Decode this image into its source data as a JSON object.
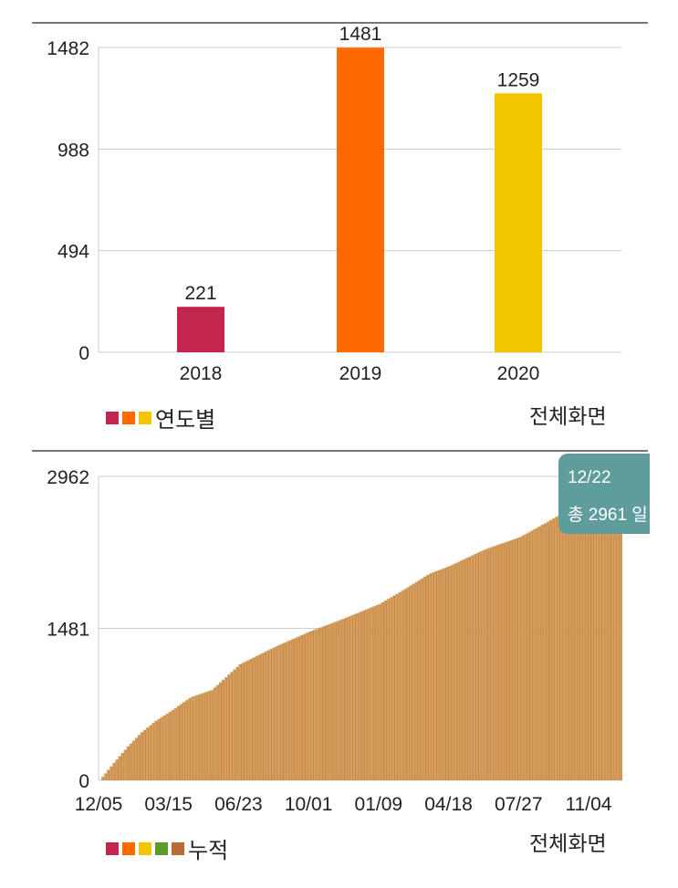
{
  "charts": [
    {
      "legend_label": "연도별",
      "fullscreen_label": "전체화면",
      "legend_colors": [
        "#c2264f",
        "#ff6a00",
        "#f2c500"
      ]
    },
    {
      "legend_label": "누적",
      "fullscreen_label": "전체화면",
      "legend_colors": [
        "#c2264f",
        "#ff6a00",
        "#f2c500",
        "#5c9a2a",
        "#b86a37"
      ],
      "tooltip": {
        "date": "12/22",
        "value": "총 2961 일"
      }
    }
  ],
  "chart_data": [
    {
      "type": "bar",
      "title": "",
      "xlabel": "",
      "ylabel": "",
      "categories": [
        "2018",
        "2019",
        "2020"
      ],
      "values": [
        221,
        1481,
        1259
      ],
      "colors": [
        "#c2264f",
        "#ff6a00",
        "#f2c500"
      ],
      "yticks": [
        "0",
        "494",
        "988",
        "1482"
      ],
      "ylim": [
        0,
        1482
      ],
      "grid": true
    },
    {
      "type": "bar",
      "title": "",
      "xlabel": "",
      "ylabel": "",
      "cumulative": true,
      "x_days": [
        0,
        20,
        40,
        60,
        80,
        100,
        130,
        160,
        200,
        250,
        300,
        350,
        400,
        430,
        470,
        500,
        550,
        600,
        640,
        680,
        700,
        720,
        747
      ],
      "values": [
        0,
        170,
        330,
        470,
        580,
        667,
        810,
        880,
        1130,
        1300,
        1450,
        1580,
        1720,
        1840,
        2010,
        2090,
        2250,
        2370,
        2520,
        2680,
        2760,
        2830,
        2961
      ],
      "xtick_days": [
        0,
        100,
        200,
        300,
        400,
        500,
        600,
        700
      ],
      "xticks": [
        "12/05",
        "03/15",
        "06/23",
        "10/01",
        "01/09",
        "04/18",
        "07/27",
        "11/04"
      ],
      "yticks": [
        "0",
        "1481",
        "2962"
      ],
      "ylim": [
        0,
        2962
      ],
      "color": "#d79a55",
      "grid": true
    }
  ]
}
